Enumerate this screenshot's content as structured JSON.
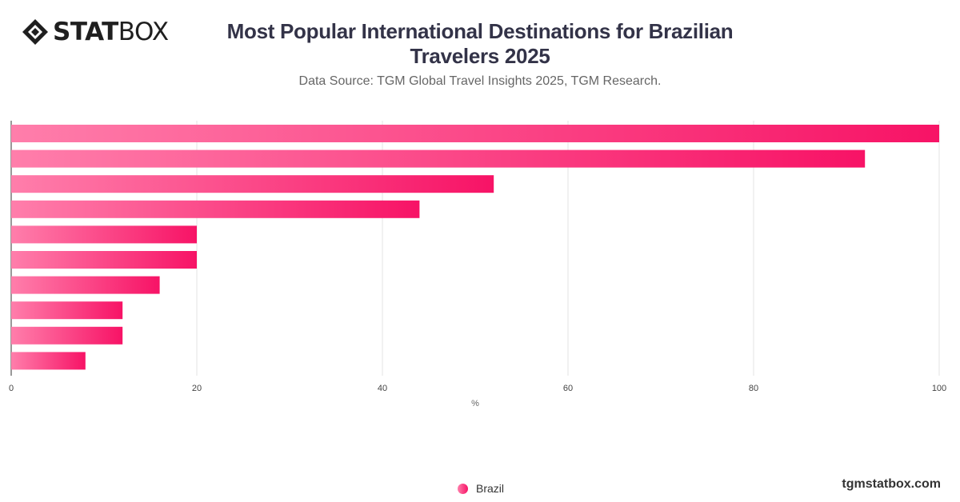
{
  "brand": {
    "logo_text_bold": "STAT",
    "logo_text_light": "BOX",
    "footer": "tgmstatbox.com"
  },
  "colors": {
    "bar_start": "#ff7eab",
    "bar_end": "#f71366",
    "grid": "#e3e3e3",
    "axis": "#333333"
  },
  "chart_data": {
    "type": "bar",
    "orientation": "horizontal",
    "title": "Most Popular International Destinations for Brazilian Travelers 2025",
    "subtitle": "Data Source: TGM Global Travel Insights 2025, TGM Research.",
    "xlabel": "%",
    "ylabel": "",
    "xlim": [
      0,
      100
    ],
    "xticks": [
      0,
      20,
      40,
      60,
      80,
      100
    ],
    "grid": true,
    "legend_position": "bottom",
    "series": [
      {
        "name": "Brazil",
        "values": [
          100,
          92,
          52,
          44,
          20,
          20,
          16,
          12,
          12,
          8
        ]
      }
    ]
  }
}
